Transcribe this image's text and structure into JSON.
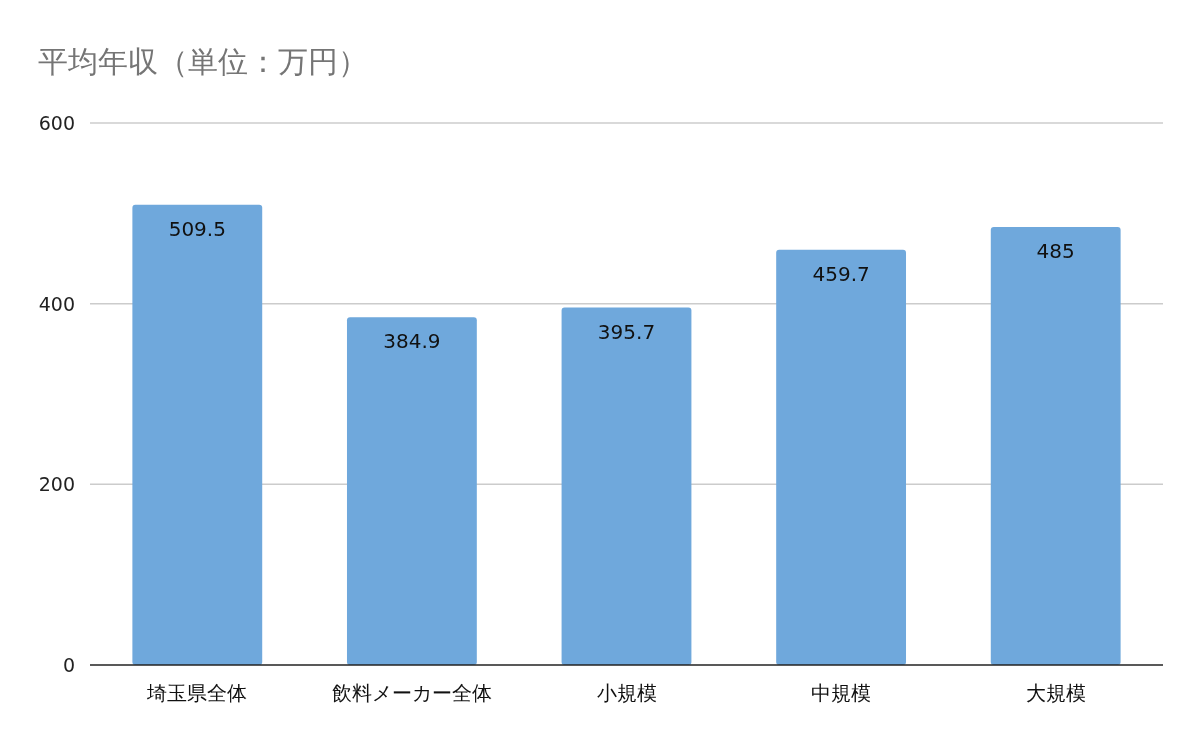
{
  "chart_data": {
    "type": "bar",
    "title": "平均年収（単位：万円）",
    "categories": [
      "埼玉県全体",
      "飲料メーカー全体",
      "小規模",
      "中規模",
      "大規模"
    ],
    "values": [
      509.5,
      384.9,
      395.7,
      459.7,
      485
    ],
    "color": "#6fa8dc",
    "ylim": [
      0,
      600
    ],
    "yticks": [
      0,
      200,
      400,
      600
    ],
    "grid": "y",
    "data_labels": true
  }
}
